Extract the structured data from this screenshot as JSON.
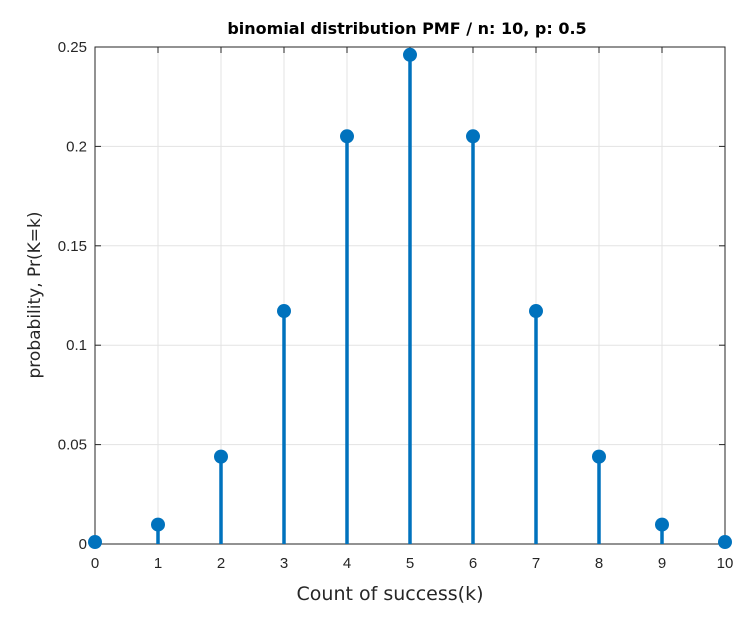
{
  "chart_data": {
    "type": "stem",
    "title": "binomial distribution PMF / n: 10, p: 0.5",
    "xlabel": "Count of success(k)",
    "ylabel": "probability, Pr(K=k)",
    "x": [
      0,
      1,
      2,
      3,
      4,
      5,
      6,
      7,
      8,
      9,
      10
    ],
    "values": [
      0.00098,
      0.00977,
      0.04395,
      0.11719,
      0.20508,
      0.24609,
      0.20508,
      0.11719,
      0.04395,
      0.00977,
      0.00098
    ],
    "xlim": [
      0,
      10
    ],
    "ylim": [
      0,
      0.25
    ],
    "xticks": [
      "0",
      "1",
      "2",
      "3",
      "4",
      "5",
      "6",
      "7",
      "8",
      "9",
      "10"
    ],
    "yticks": [
      {
        "value": 0,
        "label": "0"
      },
      {
        "value": 0.05,
        "label": "0.05"
      },
      {
        "value": 0.1,
        "label": "0.1"
      },
      {
        "value": 0.15,
        "label": "0.15"
      },
      {
        "value": 0.2,
        "label": "0.2"
      },
      {
        "value": 0.25,
        "label": "0.25"
      }
    ],
    "grid": true,
    "color": "#0072BD"
  }
}
